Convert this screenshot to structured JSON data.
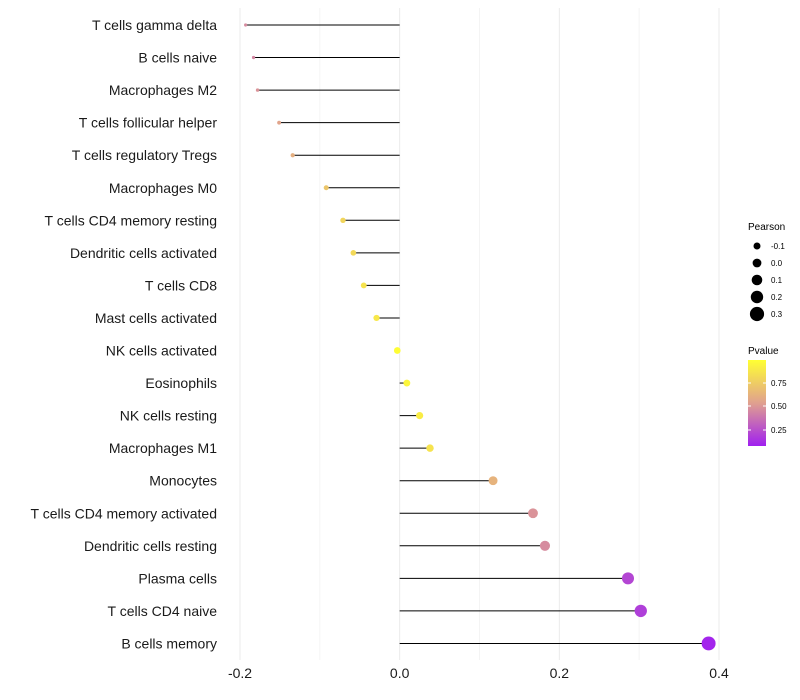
{
  "chart_data": {
    "type": "lollipop",
    "title": "",
    "xlabel": "",
    "ylabel": "",
    "xlim": [
      -0.2,
      0.4
    ],
    "xticks": [
      -0.2,
      0.0,
      0.2,
      0.4
    ],
    "xtick_labels": [
      "-0.2",
      "0.0",
      "0.2",
      "0.4"
    ],
    "categories": [
      "T cells gamma delta",
      "B cells naive",
      "Macrophages M2",
      "T cells follicular helper",
      "T cells regulatory  Tregs",
      "Macrophages M0",
      "T cells CD4 memory resting",
      "Dendritic cells activated",
      "T cells CD8",
      "Mast cells activated",
      "NK cells activated",
      "Eosinophils",
      "NK cells resting",
      "Macrophages M1",
      "Monocytes",
      "T cells CD4 memory activated",
      "Dendritic cells resting",
      "Plasma cells",
      "T cells CD4 naive",
      "B cells memory"
    ],
    "pearson": [
      -0.193,
      -0.183,
      -0.178,
      -0.151,
      -0.134,
      -0.092,
      -0.071,
      -0.058,
      -0.045,
      -0.029,
      -0.003,
      0.009,
      0.025,
      0.038,
      0.117,
      0.167,
      0.182,
      0.286,
      0.302,
      0.387
    ],
    "pvalue": [
      0.42,
      0.4,
      0.45,
      0.52,
      0.58,
      0.7,
      0.78,
      0.8,
      0.85,
      0.88,
      0.99,
      0.95,
      0.9,
      0.85,
      0.6,
      0.45,
      0.42,
      0.15,
      0.12,
      0.02
    ],
    "legend": {
      "size_title": "Pearson",
      "size_labels": [
        "-0.1",
        "0.0",
        "0.1",
        "0.2",
        "0.3"
      ],
      "color_title": "Pvalue",
      "color_labels": [
        "0.75",
        "0.50",
        "0.25"
      ],
      "color_low": "#a020f0",
      "color_mid": "#e0a08f",
      "color_high": "#ffff33",
      "placement": "right"
    }
  }
}
